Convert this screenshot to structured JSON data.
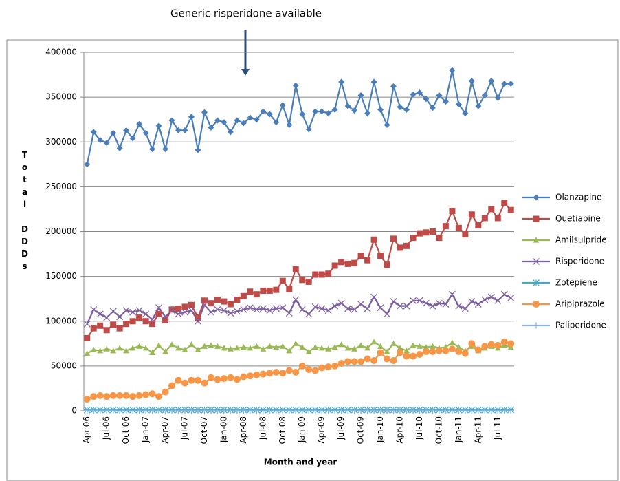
{
  "chart_data": {
    "type": "line",
    "annotation": "Generic risperidone available",
    "xlabel": "Month and year",
    "ylabel": "Total DDDs",
    "categories": [
      "Apr-06",
      null,
      null,
      "Jul-06",
      null,
      null,
      "Oct-06",
      null,
      null,
      "Jan-07",
      null,
      null,
      "Apr-07",
      null,
      null,
      "Jul-07",
      null,
      null,
      "Oct-07",
      null,
      null,
      "Jan-08",
      null,
      null,
      "Apr-08",
      null,
      null,
      "Jul-08",
      null,
      null,
      "Oct-08",
      null,
      null,
      "Jan-09",
      null,
      null,
      "Apr-09",
      null,
      null,
      "Jul-09",
      null,
      null,
      "Oct-09",
      null,
      null,
      "Jan-10",
      null,
      null,
      "Apr-10",
      null,
      null,
      "Jul-10",
      null,
      null,
      "Oct-10",
      null,
      null,
      "Jan-11",
      null,
      null,
      "Apr-11",
      null,
      null,
      "Jul-11",
      null,
      null
    ],
    "ylim": [
      0,
      400000
    ],
    "yticks": [
      0,
      50000,
      100000,
      150000,
      200000,
      250000,
      300000,
      350000,
      400000
    ],
    "grid": true,
    "legend": "right",
    "series": [
      {
        "name": "Olanzapine",
        "color": "#4a7ebb",
        "marker": "diamond",
        "values": [
          275000,
          311000,
          302000,
          299000,
          310000,
          293000,
          313000,
          304000,
          320000,
          310000,
          292000,
          318000,
          292000,
          324000,
          313000,
          313000,
          328000,
          291000,
          333000,
          316000,
          324000,
          322000,
          311000,
          324000,
          321000,
          327000,
          325000,
          334000,
          331000,
          322000,
          341000,
          319000,
          363000,
          331000,
          314000,
          334000,
          334000,
          332000,
          336000,
          367000,
          340000,
          335000,
          352000,
          332000,
          367000,
          336000,
          319000,
          362000,
          339000,
          336000,
          353000,
          355000,
          348000,
          338000,
          352000,
          345000,
          380000,
          342000,
          332000,
          368000,
          340000,
          352000,
          368000,
          349000,
          365000,
          365000
        ]
      },
      {
        "name": "Quetiapine",
        "color": "#be4b48",
        "marker": "square",
        "values": [
          81000,
          92000,
          95000,
          90000,
          96000,
          92000,
          97000,
          100000,
          104000,
          100000,
          97000,
          108000,
          101000,
          113000,
          114000,
          116000,
          118000,
          104000,
          123000,
          120000,
          124000,
          122000,
          119000,
          124000,
          128000,
          133000,
          130000,
          134000,
          134000,
          135000,
          145000,
          136000,
          158000,
          146000,
          144000,
          152000,
          152000,
          153000,
          162000,
          166000,
          164000,
          165000,
          173000,
          168000,
          191000,
          173000,
          163000,
          192000,
          182000,
          184000,
          193000,
          198000,
          199000,
          200000,
          193000,
          206000,
          223000,
          204000,
          197000,
          219000,
          207000,
          215000,
          225000,
          215000,
          232000,
          224000
        ]
      },
      {
        "name": "Amilsulpride",
        "color": "#98b954",
        "marker": "triangle",
        "values": [
          64000,
          68000,
          67000,
          69000,
          67000,
          70000,
          67000,
          70000,
          72000,
          70000,
          65000,
          73000,
          66000,
          74000,
          70000,
          68000,
          74000,
          68000,
          72000,
          73000,
          72000,
          70000,
          69000,
          70000,
          71000,
          70000,
          72000,
          69000,
          72000,
          71000,
          72000,
          67000,
          75000,
          71000,
          66000,
          71000,
          70000,
          69000,
          71000,
          74000,
          70000,
          69000,
          73000,
          70000,
          77000,
          72000,
          66000,
          75000,
          70000,
          67000,
          73000,
          72000,
          71000,
          72000,
          70000,
          71000,
          76000,
          71000,
          67000,
          72000,
          67000,
          70000,
          72000,
          70000,
          73000,
          71000
        ]
      },
      {
        "name": "Risperidone",
        "color": "#7d60a0",
        "marker": "x",
        "values": [
          97000,
          113000,
          108000,
          104000,
          111000,
          105000,
          112000,
          110000,
          112000,
          108000,
          102000,
          115000,
          105000,
          112000,
          108000,
          110000,
          112000,
          100000,
          118000,
          110000,
          113000,
          112000,
          109000,
          111000,
          113000,
          115000,
          113000,
          114000,
          112000,
          114000,
          115000,
          109000,
          124000,
          113000,
          108000,
          116000,
          114000,
          112000,
          117000,
          120000,
          114000,
          113000,
          119000,
          114000,
          127000,
          115000,
          108000,
          122000,
          117000,
          117000,
          123000,
          123000,
          120000,
          117000,
          120000,
          119000,
          130000,
          117000,
          114000,
          122000,
          119000,
          124000,
          127000,
          123000,
          130000,
          126000
        ]
      },
      {
        "name": "Zotepiene",
        "color": "#46aac5",
        "marker": "star",
        "values": [
          1000,
          1000,
          1000,
          1000,
          1000,
          1000,
          1000,
          1000,
          1000,
          1000,
          1000,
          1000,
          1000,
          1000,
          1000,
          1000,
          1000,
          1000,
          1000,
          1000,
          1000,
          1000,
          1000,
          1000,
          1000,
          1000,
          1000,
          1000,
          1000,
          1000,
          1000,
          1000,
          1000,
          1000,
          1000,
          1000,
          1000,
          1000,
          1000,
          1000,
          1000,
          1000,
          1000,
          1000,
          1000,
          1000,
          1000,
          1000,
          1000,
          1000,
          1000,
          1000,
          1000,
          1000,
          1000,
          1000,
          1000,
          1000,
          1000,
          1000,
          1000,
          1000,
          1000,
          1000,
          1000,
          1000
        ]
      },
      {
        "name": "Aripiprazole",
        "color": "#f79646",
        "marker": "circle",
        "values": [
          13000,
          16000,
          17000,
          16000,
          17000,
          17000,
          17000,
          16000,
          17000,
          18000,
          19000,
          16000,
          21000,
          28000,
          34000,
          31000,
          34000,
          34000,
          31000,
          37000,
          35000,
          36000,
          37000,
          35000,
          38000,
          39000,
          40000,
          41000,
          42000,
          43000,
          42000,
          45000,
          43000,
          50000,
          46000,
          45000,
          48000,
          49000,
          50000,
          53000,
          55000,
          55000,
          55000,
          58000,
          56000,
          65000,
          58000,
          56000,
          65000,
          61000,
          61000,
          63000,
          66000,
          66000,
          67000,
          67000,
          69000,
          66000,
          64000,
          75000,
          68000,
          72000,
          74000,
          73000,
          77000,
          75000
        ]
      },
      {
        "name": "Paliperidone",
        "color": "#8fb3e0",
        "marker": "plus",
        "values": [
          0,
          0,
          0,
          0,
          0,
          0,
          0,
          0,
          0,
          0,
          0,
          0,
          0,
          0,
          0,
          0,
          0,
          0,
          0,
          0,
          0,
          0,
          0,
          0,
          0,
          0,
          0,
          0,
          0,
          0,
          0,
          0,
          0,
          0,
          0,
          0,
          0,
          0,
          0,
          0,
          0,
          0,
          0,
          0,
          0,
          0,
          0,
          0,
          0,
          0,
          0,
          0,
          0,
          0,
          0,
          0,
          0,
          0,
          0,
          0,
          0,
          0,
          0,
          0,
          0,
          0
        ]
      }
    ]
  }
}
